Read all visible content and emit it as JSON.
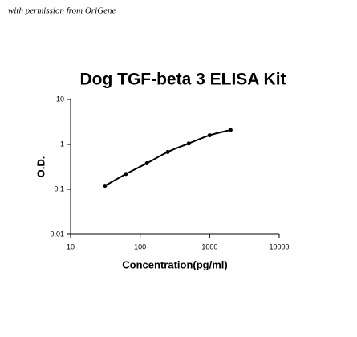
{
  "note_text": "with permission from OriGene",
  "chart_data": {
    "type": "scatter",
    "title": "Dog TGF-beta 3 ELISA Kit",
    "x_label": "Concentration(pg/ml)",
    "y_label": "O.D.",
    "x": [
      31.25,
      62.5,
      125,
      250,
      500,
      1000,
      2000
    ],
    "series": [
      {
        "color": "#000000",
        "values": [
          0.12,
          0.22,
          0.38,
          0.68,
          1.05,
          1.6,
          2.1
        ]
      }
    ],
    "fit_line": true,
    "x_log": true,
    "y_log": true,
    "xlim": [
      10,
      10000
    ],
    "xticks": [
      10,
      100,
      1000,
      10000
    ],
    "ylim": [
      0.01,
      10
    ],
    "yticks": [
      0.01,
      0.1,
      1,
      10
    ],
    "grid": false
  }
}
